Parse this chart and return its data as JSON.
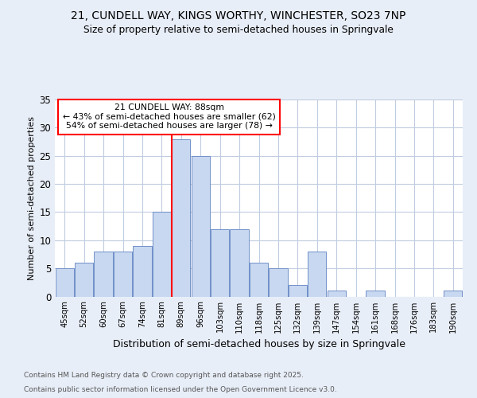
{
  "title1": "21, CUNDELL WAY, KINGS WORTHY, WINCHESTER, SO23 7NP",
  "title2": "Size of property relative to semi-detached houses in Springvale",
  "xlabel": "Distribution of semi-detached houses by size in Springvale",
  "ylabel": "Number of semi-detached properties",
  "categories": [
    "45sqm",
    "52sqm",
    "60sqm",
    "67sqm",
    "74sqm",
    "81sqm",
    "89sqm",
    "96sqm",
    "103sqm",
    "110sqm",
    "118sqm",
    "125sqm",
    "132sqm",
    "139sqm",
    "147sqm",
    "154sqm",
    "161sqm",
    "168sqm",
    "176sqm",
    "183sqm",
    "190sqm"
  ],
  "values": [
    5,
    6,
    8,
    8,
    9,
    15,
    28,
    25,
    12,
    12,
    6,
    5,
    2,
    8,
    1,
    0,
    1,
    0,
    0,
    0,
    1
  ],
  "bar_color": "#c8d8f0",
  "bar_edge_color": "#7090c8",
  "red_line_index": 6,
  "annotation_title": "21 CUNDELL WAY: 88sqm",
  "annotation_line1": "← 43% of semi-detached houses are smaller (62)",
  "annotation_line2": "54% of semi-detached houses are larger (78) →",
  "ylim": [
    0,
    35
  ],
  "yticks": [
    0,
    5,
    10,
    15,
    20,
    25,
    30,
    35
  ],
  "footnote1": "Contains HM Land Registry data © Crown copyright and database right 2025.",
  "footnote2": "Contains public sector information licensed under the Open Government Licence v3.0.",
  "bg_color": "#e8eef8",
  "plot_bg_color": "#ffffff",
  "grid_color": "#c0cce0"
}
